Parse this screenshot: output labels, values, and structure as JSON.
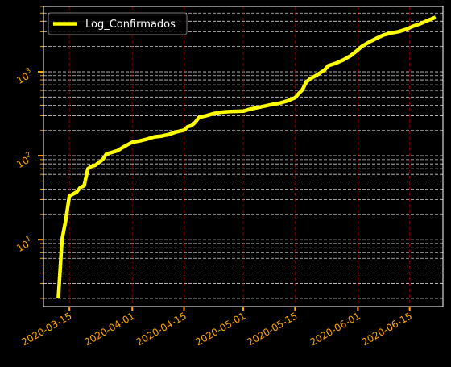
{
  "chart_data": {
    "type": "line",
    "title": "",
    "xlabel": "",
    "ylabel": "",
    "y_scale": "log",
    "ylim": [
      1.6,
      6000
    ],
    "xlim": [
      "2020-03-08",
      "2020-06-24"
    ],
    "grid": {
      "x_major": true,
      "x_color": "#8b0000",
      "y_major": true,
      "y_minor": true,
      "y_color": "#ffffff",
      "style": "dashed"
    },
    "legend": {
      "placement": "top-left",
      "entries": [
        "Log_Confirmados"
      ]
    },
    "tick_color": "#ffa500",
    "background": "#000000",
    "x_ticks": [
      "2020-03-15",
      "2020-04-01",
      "2020-04-15",
      "2020-05-01",
      "2020-05-15",
      "2020-06-01",
      "2020-06-15"
    ],
    "y_ticks": [
      {
        "value": 10,
        "base": "10",
        "exp": "1"
      },
      {
        "value": 100,
        "base": "10",
        "exp": "2"
      },
      {
        "value": 1000,
        "base": "10",
        "exp": "3"
      }
    ],
    "series": [
      {
        "name": "Log_Confirmados",
        "color": "#ffff00",
        "points": [
          [
            "2020-03-12",
            2
          ],
          [
            "2020-03-13",
            10
          ],
          [
            "2020-03-14",
            17
          ],
          [
            "2020-03-15",
            33
          ],
          [
            "2020-03-17",
            37
          ],
          [
            "2020-03-18",
            42
          ],
          [
            "2020-03-19",
            44
          ],
          [
            "2020-03-20",
            70
          ],
          [
            "2020-03-21",
            75
          ],
          [
            "2020-03-22",
            77
          ],
          [
            "2020-03-24",
            90
          ],
          [
            "2020-03-25",
            105
          ],
          [
            "2020-03-26",
            108
          ],
          [
            "2020-03-28",
            115
          ],
          [
            "2020-03-30",
            130
          ],
          [
            "2020-04-01",
            145
          ],
          [
            "2020-04-03",
            150
          ],
          [
            "2020-04-05",
            158
          ],
          [
            "2020-04-07",
            168
          ],
          [
            "2020-04-09",
            172
          ],
          [
            "2020-04-11",
            180
          ],
          [
            "2020-04-13",
            193
          ],
          [
            "2020-04-15",
            202
          ],
          [
            "2020-04-16",
            222
          ],
          [
            "2020-04-17",
            228
          ],
          [
            "2020-04-18",
            250
          ],
          [
            "2020-04-19",
            285
          ],
          [
            "2020-04-21",
            300
          ],
          [
            "2020-04-23",
            318
          ],
          [
            "2020-04-25",
            330
          ],
          [
            "2020-04-27",
            335
          ],
          [
            "2020-05-01",
            340
          ],
          [
            "2020-05-03",
            360
          ],
          [
            "2020-05-05",
            375
          ],
          [
            "2020-05-07",
            392
          ],
          [
            "2020-05-09",
            410
          ],
          [
            "2020-05-11",
            425
          ],
          [
            "2020-05-13",
            450
          ],
          [
            "2020-05-15",
            490
          ],
          [
            "2020-05-16",
            550
          ],
          [
            "2020-05-17",
            610
          ],
          [
            "2020-05-18",
            750
          ],
          [
            "2020-05-19",
            820
          ],
          [
            "2020-05-21",
            920
          ],
          [
            "2020-05-23",
            1050
          ],
          [
            "2020-05-24",
            1180
          ],
          [
            "2020-05-26",
            1260
          ],
          [
            "2020-05-28",
            1380
          ],
          [
            "2020-05-30",
            1550
          ],
          [
            "2020-06-01",
            1820
          ],
          [
            "2020-06-02",
            2000
          ],
          [
            "2020-06-04",
            2250
          ],
          [
            "2020-06-06",
            2500
          ],
          [
            "2020-06-08",
            2750
          ],
          [
            "2020-06-10",
            2900
          ],
          [
            "2020-06-12",
            3000
          ],
          [
            "2020-06-14",
            3200
          ],
          [
            "2020-06-16",
            3500
          ],
          [
            "2020-06-18",
            3750
          ],
          [
            "2020-06-20",
            4100
          ],
          [
            "2020-06-22",
            4450
          ]
        ]
      }
    ]
  }
}
